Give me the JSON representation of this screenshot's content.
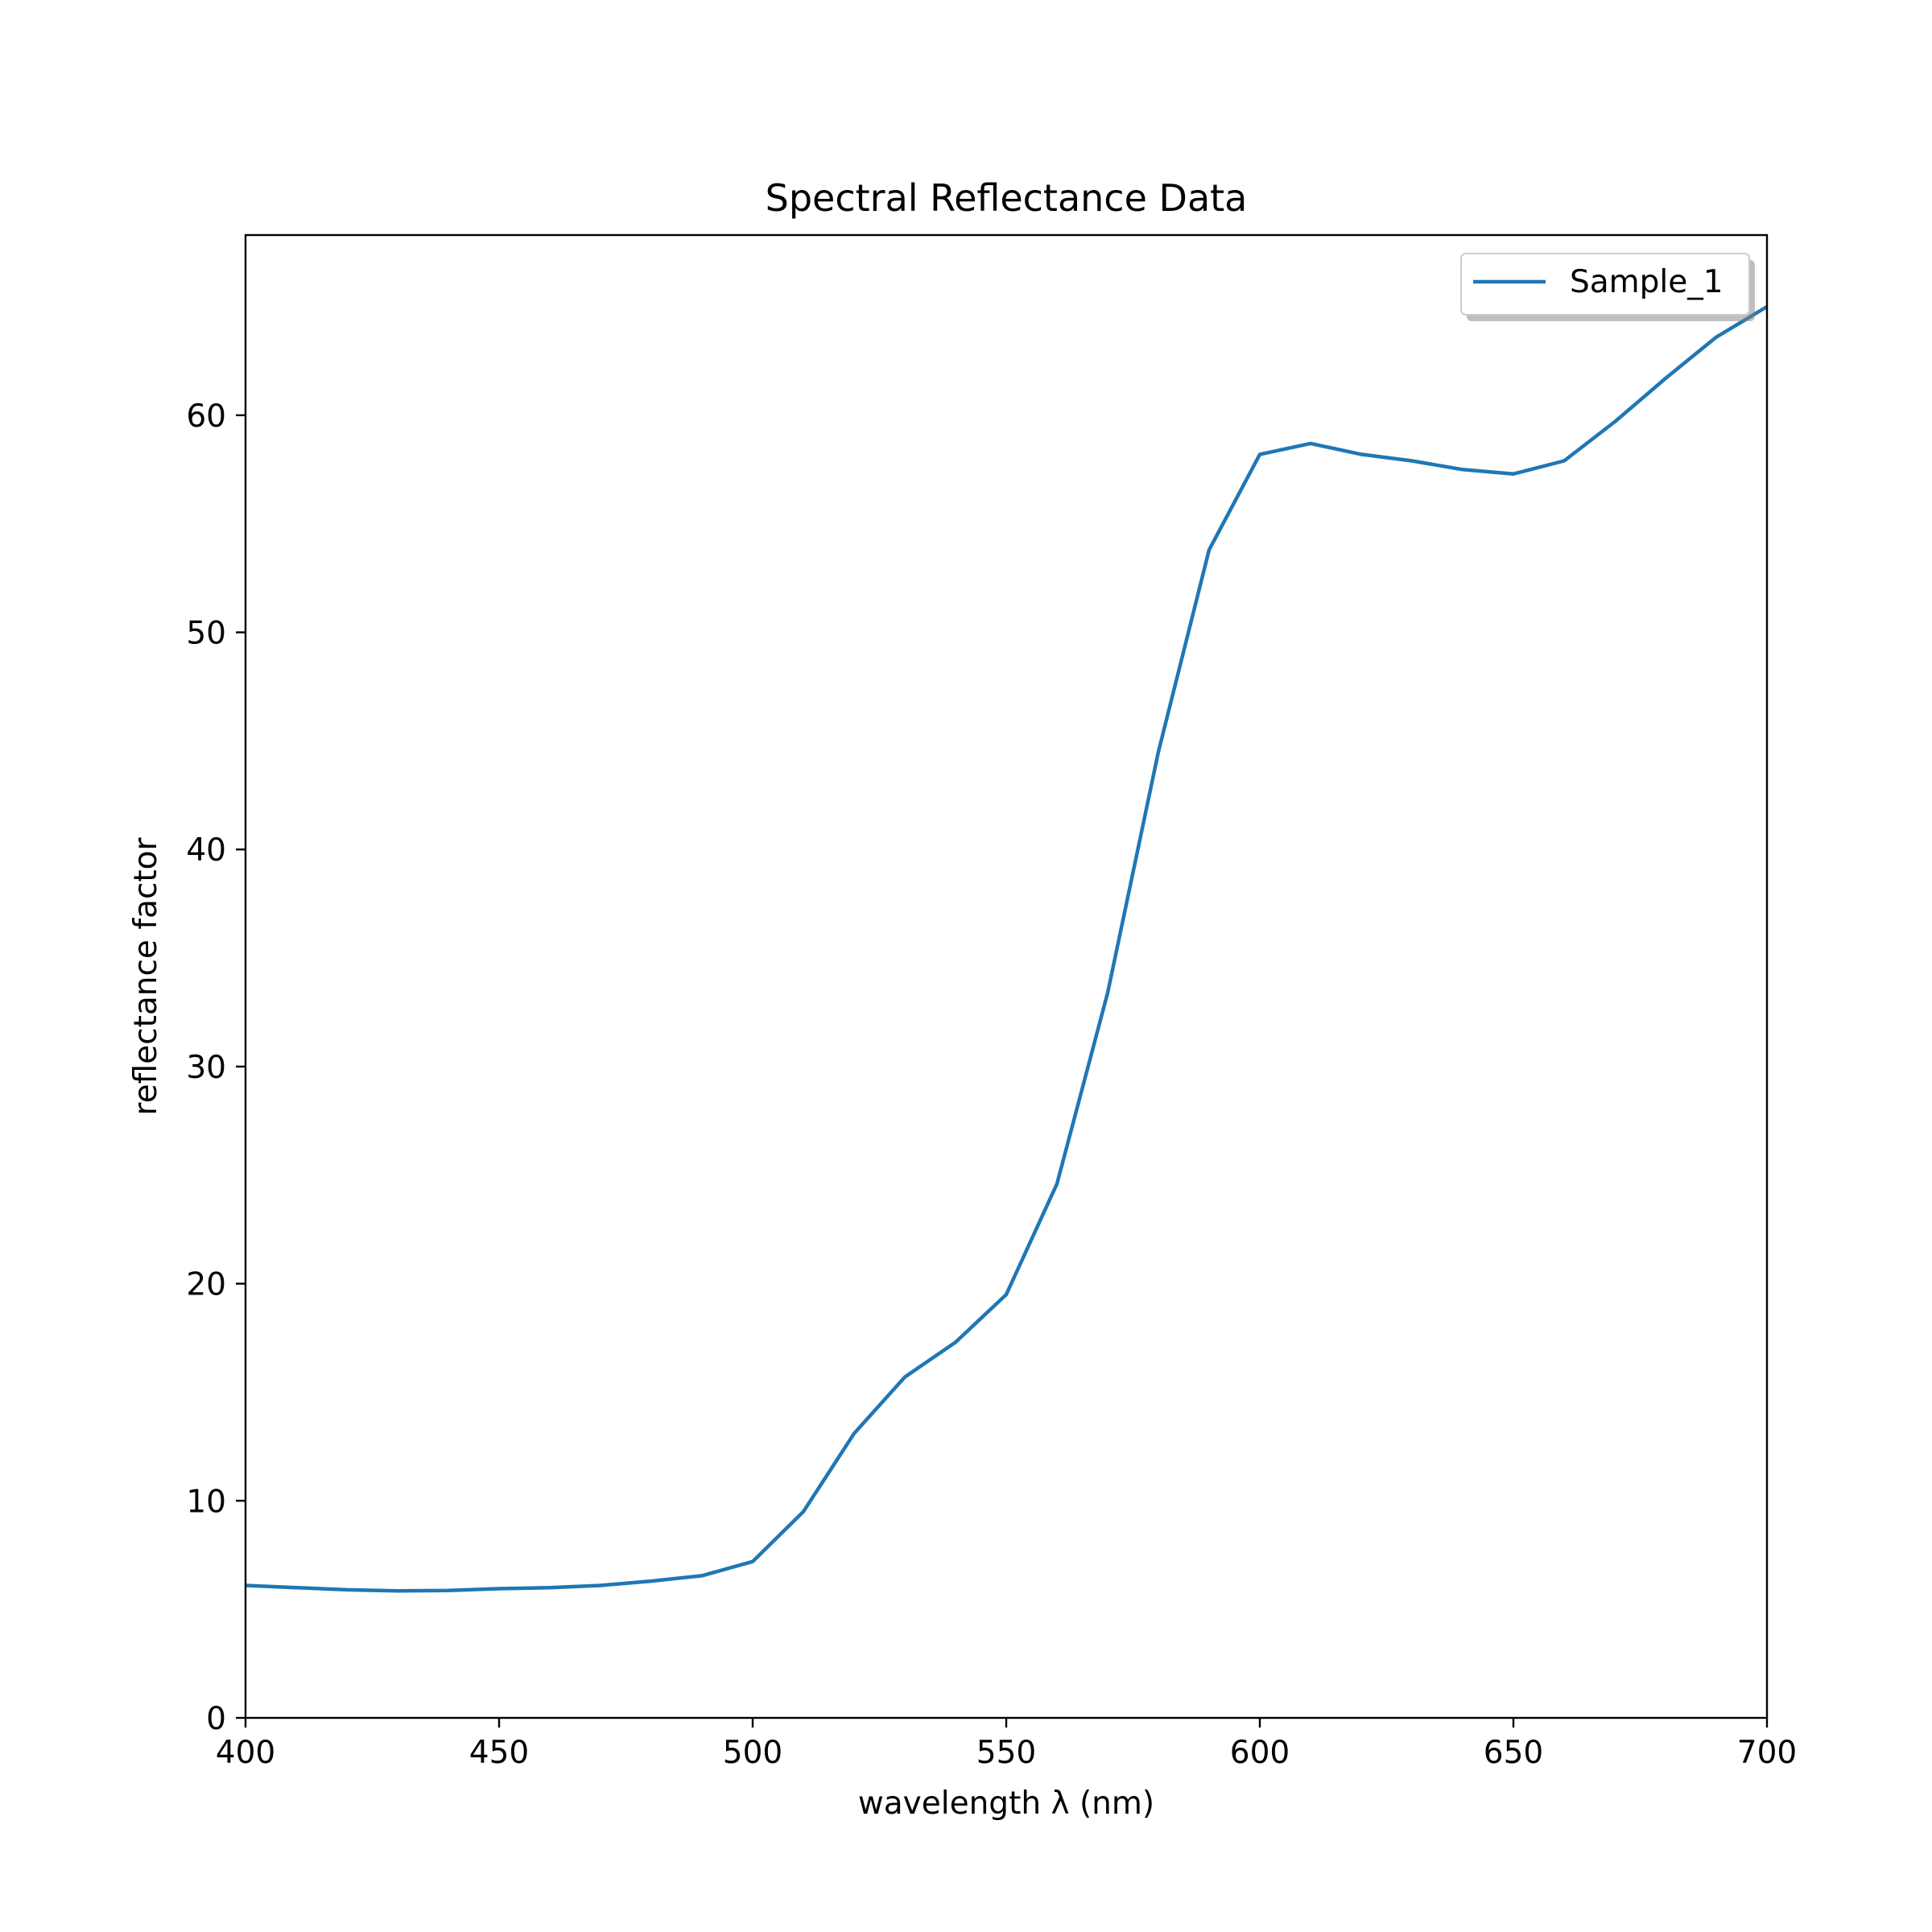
{
  "chart_data": {
    "type": "line",
    "title": "Spectral Reflectance Data",
    "xlabel": "wavelength λ (nm)",
    "ylabel": "reflectance factor",
    "xlim": [
      400,
      700
    ],
    "ylim": [
      0,
      68.3
    ],
    "xticks": [
      400,
      450,
      500,
      550,
      600,
      650,
      700
    ],
    "yticks": [
      0,
      10,
      20,
      30,
      40,
      50,
      60
    ],
    "grid": false,
    "legend_position": "top-right",
    "series": [
      {
        "name": "Sample_1",
        "color": "#1f77b4",
        "x": [
          400,
          410,
          420,
          430,
          440,
          450,
          460,
          470,
          480,
          490,
          500,
          510,
          520,
          530,
          540,
          550,
          560,
          570,
          580,
          590,
          600,
          610,
          620,
          630,
          640,
          650,
          660,
          670,
          680,
          690,
          700
        ],
        "y": [
          6.1,
          6.0,
          5.9,
          5.85,
          5.87,
          5.95,
          6.0,
          6.1,
          6.3,
          6.55,
          7.2,
          9.5,
          13.1,
          15.7,
          17.3,
          19.5,
          24.6,
          33.4,
          44.5,
          53.8,
          58.2,
          58.7,
          58.2,
          57.9,
          57.5,
          57.3,
          57.9,
          59.7,
          61.7,
          63.6,
          65.0
        ]
      }
    ]
  }
}
